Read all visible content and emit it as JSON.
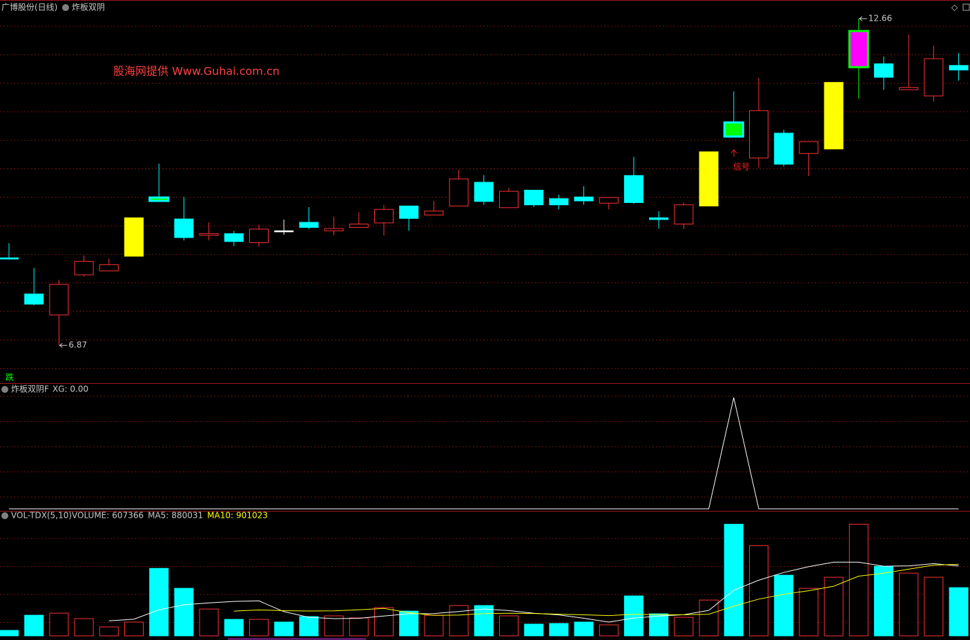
{
  "header": {
    "title": "广博股份(日线)",
    "indicator": "炸板双阴"
  },
  "watermark": "股海网提供  Www.Guhai.com.cn",
  "signal_label": "信号",
  "fall_label": "跌",
  "chart_data": [
    {
      "type": "candlestick",
      "ylim": [
        6.2,
        12.99
      ],
      "open": [
        8.42,
        7.78,
        7.41,
        8.12,
        8.19,
        8.45,
        9.49,
        9.11,
        8.82,
        8.85,
        8.69,
        8.9,
        9.05,
        8.9,
        8.96,
        9.04,
        9.34,
        9.18,
        9.34,
        9.76,
        9.31,
        9.62,
        9.47,
        9.5,
        9.39,
        9.88,
        9.13,
        9.02,
        9.34,
        10.82,
        10.19,
        10.63,
        10.27,
        10.35,
        12.44,
        11.86,
        11.4,
        11.29,
        11.83
      ],
      "high": [
        8.68,
        8.24,
        8.03,
        8.46,
        8.41,
        9.13,
        10.09,
        9.5,
        9.05,
        8.9,
        9.01,
        9.1,
        9.32,
        9.15,
        9.23,
        9.36,
        9.34,
        9.43,
        9.98,
        9.89,
        9.66,
        9.62,
        9.54,
        9.69,
        9.49,
        10.21,
        9.25,
        9.4,
        10.3,
        11.37,
        11.61,
        10.69,
        10.48,
        11.53,
        12.66,
        11.99,
        12.38,
        12.18,
        12.05
      ],
      "low": [
        8.39,
        7.58,
        6.87,
        8.09,
        8.19,
        8.45,
        9.43,
        8.73,
        8.73,
        8.63,
        8.62,
        8.83,
        8.93,
        8.82,
        8.96,
        8.82,
        8.9,
        9.18,
        9.34,
        9.36,
        9.31,
        9.32,
        9.28,
        9.36,
        9.28,
        9.38,
        8.94,
        8.93,
        9.34,
        10.57,
        10.02,
        10.04,
        9.87,
        10.35,
        11.24,
        11.4,
        11.4,
        11.19,
        11.56
      ],
      "close": [
        8.4,
        7.6,
        7.95,
        8.36,
        8.3,
        9.13,
        9.43,
        8.78,
        8.85,
        8.71,
        8.93,
        8.9,
        8.96,
        8.94,
        9.02,
        9.28,
        9.12,
        9.25,
        9.82,
        9.42,
        9.6,
        9.36,
        9.36,
        9.43,
        9.49,
        9.4,
        9.1,
        9.36,
        10.3,
        10.57,
        11.03,
        10.08,
        10.48,
        11.53,
        11.8,
        11.62,
        11.44,
        11.95,
        11.75
      ],
      "fills": [
        "#00ffff",
        "#00ffff",
        "none",
        "none",
        "none",
        "#ffff00",
        "#00ff00",
        "#00ffff",
        "none",
        "#00ffff",
        "none",
        "#ffffff",
        "#00ffff",
        "none",
        "none",
        "none",
        "#00ffff",
        "none",
        "none",
        "#00ffff",
        "none",
        "#00ffff",
        "#00ffff",
        "#00ffff",
        "none",
        "#00ffff",
        "#00ffff",
        "none",
        "#ffff00",
        "#00ff00",
        "none",
        "#00ffff",
        "none",
        "#ffff00",
        "#ff00ff",
        "#00ffff",
        "none",
        "none",
        "#00ffff"
      ],
      "edges": [
        "#00ffff",
        "#00ffff",
        "#ff3232",
        "#ff3232",
        "#ff3232",
        "#ffff00",
        "#00ffff",
        "#00ffff",
        "#ff3232",
        "#00ffff",
        "#ff3232",
        "#ffffff",
        "#00ffff",
        "#ff3232",
        "#ff3232",
        "#ff3232",
        "#00ffff",
        "#ff3232",
        "#ff3232",
        "#00ffff",
        "#ff3232",
        "#00ffff",
        "#00ffff",
        "#00ffff",
        "#ff3232",
        "#00ffff",
        "#00ffff",
        "#ff3232",
        "#ffff00",
        "#00ffff",
        "#ff3232",
        "#00ffff",
        "#ff3232",
        "#ffff00",
        "#00ff00",
        "#00ffff",
        "#ff3232",
        "#ff3232",
        "#00ffff"
      ]
    },
    {
      "type": "line",
      "title": "炸板双阴F",
      "readout": "XG: 0.00",
      "ylim": [
        0,
        1.13
      ],
      "color": "#ffffff",
      "values": [
        0,
        0,
        0,
        0,
        0,
        0,
        0,
        0,
        0,
        0,
        0,
        0,
        0,
        0,
        0,
        0,
        0,
        0,
        0,
        0,
        0,
        0,
        0,
        0,
        0,
        0,
        0,
        0,
        0,
        1,
        0,
        0,
        0,
        0,
        0,
        0,
        0,
        0,
        0
      ]
    },
    {
      "type": "volume",
      "title": "VOL-TDX(5,10)",
      "ylim": [
        0,
        1600000
      ],
      "series": [
        {
          "name": "VOLUME:",
          "values": [
            69000,
            260000,
            286000,
            217000,
            113000,
            174000,
            850000,
            599000,
            338000,
            208000,
            208000,
            174000,
            243000,
            252000,
            226000,
            356000,
            312000,
            260000,
            382000,
            382000,
            252000,
            148000,
            156000,
            174000,
            139000,
            503000,
            278000,
            234000,
            451000,
            1406000,
            1137000,
            764000,
            599000,
            738000,
            1406000,
            876000,
            790000,
            738000,
            607366
          ],
          "fills": [
            "#00ffff",
            "#00ffff",
            "none",
            "none",
            "none",
            "none",
            "#00ffff",
            "#00ffff",
            "none",
            "#00ffff",
            "none",
            "#00ffff",
            "#00ffff",
            "none",
            "none",
            "none",
            "#00ffff",
            "none",
            "none",
            "#00ffff",
            "none",
            "#00ffff",
            "#00ffff",
            "#00ffff",
            "none",
            "#00ffff",
            "#00ffff",
            "none",
            "none",
            "#00ffff",
            "none",
            "#00ffff",
            "none",
            "none",
            "none",
            "#00ffff",
            "none",
            "none",
            "#00ffff"
          ],
          "edges": [
            "#00ffff",
            "#00ffff",
            "#ff3232",
            "#ff3232",
            "#ff3232",
            "#ff3232",
            "#00ffff",
            "#00ffff",
            "#ff3232",
            "#00ffff",
            "#ff3232",
            "#00ffff",
            "#00ffff",
            "#ff3232",
            "#ff3232",
            "#ff3232",
            "#00ffff",
            "#ff3232",
            "#ff3232",
            "#00ffff",
            "#ff3232",
            "#00ffff",
            "#00ffff",
            "#00ffff",
            "#ff3232",
            "#00ffff",
            "#00ffff",
            "#ff3232",
            "#ff3232",
            "#00ffff",
            "#ff3232",
            "#00ffff",
            "#ff3232",
            "#ff3232",
            "#ff3232",
            "#00ffff",
            "#ff3232",
            "#ff3232",
            "#00ffff"
          ]
        },
        {
          "name": "MA5:",
          "color": "#ffffff",
          "values": [
            null,
            null,
            null,
            null,
            189000,
            210000,
            328000,
            391000,
            415000,
            434000,
            441000,
            305000,
            234000,
            217000,
            221000,
            250000,
            278000,
            281000,
            307000,
            338000,
            318000,
            285000,
            264000,
            222000,
            174000,
            224000,
            250000,
            266000,
            321000,
            574000,
            701000,
            798000,
            871000,
            929000,
            929000,
            877000,
            882000,
            910000,
            880031
          ]
        },
        {
          "name": "MA10:",
          "color": "#ffff00",
          "values": [
            null,
            null,
            null,
            null,
            null,
            null,
            null,
            null,
            null,
            312000,
            326000,
            317000,
            313000,
            316000,
            328000,
            346000,
            292000,
            258000,
            262000,
            280000,
            284000,
            282000,
            273000,
            265000,
            256000,
            271000,
            268000,
            265000,
            272000,
            374000,
            463000,
            524000,
            569000,
            625000,
            752000,
            789000,
            840000,
            891000,
            901023
          ]
        }
      ]
    }
  ]
}
